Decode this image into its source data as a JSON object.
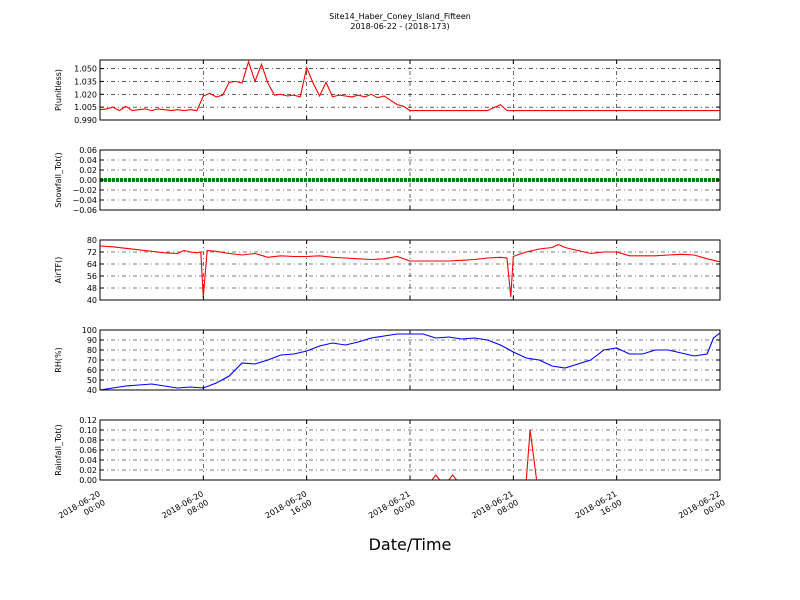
{
  "figure": {
    "title_line1": "Site14_Haber_Coney_Island_Fifteen",
    "title_line2": "2018-06-22 - (2018-173)",
    "xlabel": "Date/Time"
  },
  "chart_data": [
    {
      "type": "line",
      "ylabel": "P(unitless)",
      "color": "#ff0000",
      "ylim": [
        0.99,
        1.06
      ],
      "yticks": [
        "1.050",
        "1.035",
        "1.020",
        "1.005",
        "0.990"
      ],
      "ytick_values": [
        1.05,
        1.035,
        1.02,
        1.005,
        0.99
      ],
      "grid": true,
      "x_hours": [
        0,
        0.5,
        1,
        1.5,
        2,
        2.5,
        3,
        3.5,
        4,
        4.5,
        5,
        5.5,
        6,
        6.5,
        7,
        7.5,
        8,
        8.5,
        9,
        9.5,
        10,
        10.5,
        11,
        11.5,
        12,
        12.5,
        13,
        13.5,
        14,
        14.5,
        15,
        15.5,
        16,
        16.5,
        17,
        17.5,
        18,
        18.5,
        19,
        19.5,
        20,
        20.5,
        21,
        21.5,
        22,
        22.5,
        23,
        23.5,
        24,
        30,
        31,
        31.5,
        32,
        48
      ],
      "values": [
        1.002,
        1.003,
        1.005,
        1.001,
        1.006,
        1.001,
        1.002,
        1.003,
        1.001,
        1.003,
        1.002,
        1.001,
        1.002,
        1.001,
        1.002,
        1.001,
        1.018,
        1.021,
        1.017,
        1.019,
        1.034,
        1.035,
        1.033,
        1.058,
        1.035,
        1.055,
        1.033,
        1.019,
        1.02,
        1.018,
        1.019,
        1.017,
        1.051,
        1.033,
        1.018,
        1.034,
        1.017,
        1.019,
        1.018,
        1.017,
        1.019,
        1.017,
        1.02,
        1.016,
        1.018,
        1.013,
        1.008,
        1.006,
        1.001,
        1.001,
        1.008,
        1.001,
        1.001,
        1.001
      ]
    },
    {
      "type": "line",
      "ylabel": "Snowfall_Tot()",
      "color": "#008000",
      "ylim": [
        -0.06,
        0.06
      ],
      "yticks": [
        "0.06",
        "0.04",
        "0.02",
        "0.00",
        "−0.02",
        "−0.04",
        "−0.06"
      ],
      "ytick_values": [
        0.06,
        0.04,
        0.02,
        0.0,
        -0.02,
        -0.04,
        -0.06
      ],
      "grid": true,
      "x_hours": [
        0,
        48
      ],
      "values": [
        0.0,
        0.0
      ]
    },
    {
      "type": "line",
      "ylabel": "AirTF()",
      "color": "#ff0000",
      "ylim": [
        40,
        80
      ],
      "yticks": [
        "80",
        "72",
        "64",
        "56",
        "48",
        "40"
      ],
      "ytick_values": [
        80,
        72,
        64,
        56,
        48,
        40
      ],
      "grid": true,
      "x_hours": [
        0,
        1,
        2,
        3,
        4,
        5,
        6,
        6.5,
        7,
        7.5,
        7.8,
        8.0,
        8.3,
        9,
        10,
        11,
        12,
        13,
        14,
        15,
        16,
        17,
        18,
        19,
        20,
        21,
        22,
        23,
        24,
        25,
        26,
        27,
        28,
        29,
        30,
        31,
        31.5,
        31.8,
        32.0,
        32.3,
        33,
        34,
        35,
        35.5,
        36,
        36.5,
        37,
        38,
        39,
        40,
        41,
        42,
        43,
        44,
        45,
        46,
        47,
        48
      ],
      "values": [
        76,
        75.5,
        74.5,
        73.5,
        72.5,
        71.5,
        71,
        73,
        72,
        71.5,
        72,
        42,
        73,
        72.5,
        71,
        70,
        71,
        68.5,
        69.5,
        69,
        69,
        69.5,
        68.5,
        68,
        67.5,
        67,
        67.5,
        69,
        66,
        66,
        66,
        66,
        66.5,
        67,
        68,
        68.5,
        68,
        42,
        69,
        70,
        72,
        74,
        75,
        77,
        75,
        74,
        73,
        71,
        72,
        72,
        69.5,
        69.5,
        69.5,
        70,
        70.5,
        70,
        67.5,
        65.5
      ]
    },
    {
      "type": "line",
      "ylabel": "RH(%)",
      "color": "#0000ff",
      "ylim": [
        40,
        100
      ],
      "yticks": [
        "100",
        "90",
        "80",
        "70",
        "60",
        "50",
        "40"
      ],
      "ytick_values": [
        100,
        90,
        80,
        70,
        60,
        50,
        40
      ],
      "grid": true,
      "x_hours": [
        0,
        1,
        2,
        3,
        4,
        5,
        6,
        7,
        8,
        9,
        10,
        11,
        12,
        13,
        14,
        15,
        16,
        17,
        18,
        19,
        20,
        21,
        22,
        23,
        24,
        25,
        26,
        27,
        28,
        29,
        30,
        31,
        32,
        33,
        34,
        35,
        36,
        37,
        38,
        39,
        40,
        41,
        42,
        43,
        44,
        45,
        46,
        47,
        47.5,
        48
      ],
      "values": [
        40,
        42,
        44,
        45,
        46,
        44,
        42,
        43,
        42,
        47,
        54,
        67,
        66,
        70,
        75,
        76,
        79,
        84,
        87,
        85,
        88,
        92,
        94,
        96,
        96,
        96,
        92,
        93,
        91,
        92,
        90,
        85,
        78,
        72,
        70,
        64,
        62,
        66,
        70,
        80,
        82,
        76,
        76,
        80,
        80,
        77,
        74,
        76,
        92,
        97
      ]
    },
    {
      "type": "line",
      "ylabel": "Rainfall_Tot()",
      "color": "#ff0000",
      "ylim": [
        0.0,
        0.12
      ],
      "yticks": [
        "0.12",
        "0.10",
        "0.08",
        "0.06",
        "0.04",
        "0.02",
        "0.00"
      ],
      "ytick_values": [
        0.12,
        0.1,
        0.08,
        0.06,
        0.04,
        0.02,
        0.0
      ],
      "grid": true,
      "x_hours": [
        0,
        25.7,
        26.0,
        26.3,
        27.0,
        27.3,
        27.6,
        33.0,
        33.3,
        33.8,
        48
      ],
      "values": [
        0.0,
        0.0,
        0.01,
        0.0,
        0.0,
        0.01,
        0.0,
        0.0,
        0.1,
        0.0,
        0.0
      ]
    }
  ],
  "x_axis": {
    "range_hours": [
      0,
      48
    ],
    "ticks": [
      {
        "hour": 0,
        "line1": "2018-06-20",
        "line2": "00:00"
      },
      {
        "hour": 8,
        "line1": "2018-06-20",
        "line2": "08:00"
      },
      {
        "hour": 16,
        "line1": "2018-06-20",
        "line2": "16:00"
      },
      {
        "hour": 24,
        "line1": "2018-06-21",
        "line2": "00:00"
      },
      {
        "hour": 32,
        "line1": "2018-06-21",
        "line2": "08:00"
      },
      {
        "hour": 40,
        "line1": "2018-06-21",
        "line2": "16:00"
      },
      {
        "hour": 48,
        "line1": "2018-06-22",
        "line2": "00:00"
      }
    ]
  }
}
